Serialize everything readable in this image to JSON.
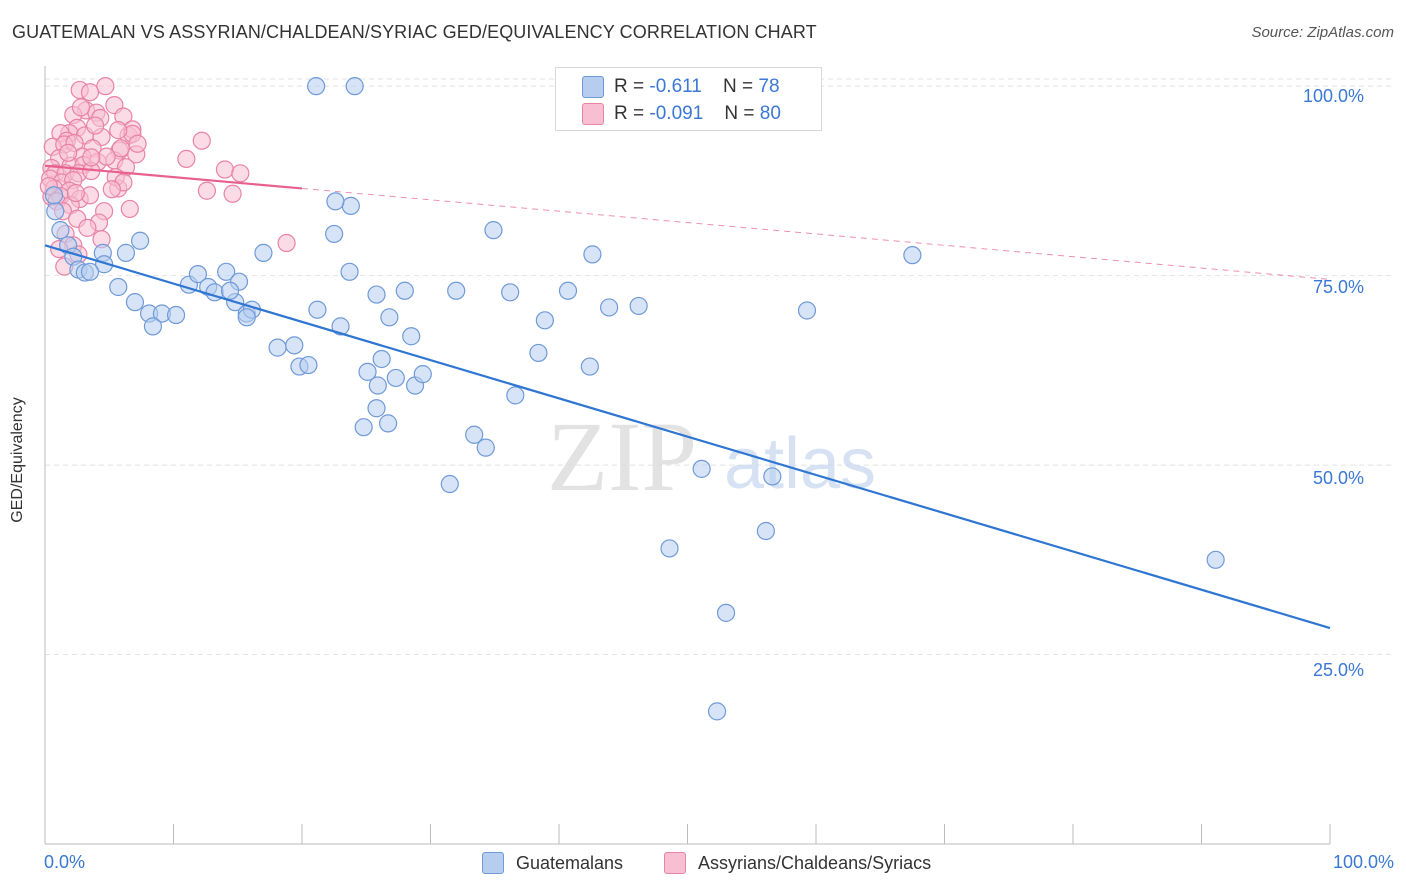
{
  "title": "GUATEMALAN VS ASSYRIAN/CHALDEAN/SYRIAC GED/EQUIVALENCY CORRELATION CHART",
  "source": "Source: ZipAtlas.com",
  "watermark": {
    "zip": "ZIP",
    "atlas": "atlas"
  },
  "legend": {
    "rows": [
      {
        "r_label": "R =",
        "r_value": "-0.611",
        "n_label": "N =",
        "n_value": "78"
      },
      {
        "r_label": "R =",
        "r_value": "-0.091",
        "n_label": "N =",
        "n_value": "80"
      }
    ]
  },
  "bottom_legend": {
    "guatemalans": "Guatemalans",
    "assyrians": "Assyrians/Chaldeans/Syriacs"
  },
  "colors": {
    "blue_fill": "#b6cdf0",
    "blue_stroke": "#6f9ad8",
    "blue_line": "#2f76d2",
    "pink_fill": "#f7bfd1",
    "pink_stroke": "#e983a6",
    "pink_line": "#e8608d",
    "grid": "#e2e2e2",
    "tick_text": "#3a78d4"
  },
  "chart_data": {
    "type": "scatter",
    "title": "GUATEMALAN VS ASSYRIAN/CHALDEAN/SYRIAC GED/EQUIVALENCY CORRELATION CHART",
    "xlabel": "",
    "ylabel": "GED/Equivalency",
    "xlim": [
      0,
      100
    ],
    "ylim": [
      0,
      102
    ],
    "x_tick_labels": [
      "0.0%",
      "100.0%"
    ],
    "y_ticks": [
      25,
      50,
      75,
      100
    ],
    "y_tick_labels": [
      "25.0%",
      "50.0%",
      "75.0%",
      "100.0%"
    ],
    "grid": true,
    "legend_position": "top-center",
    "series": [
      {
        "name": "Guatemalans",
        "R": -0.611,
        "N": 78,
        "trend": {
          "x": [
            0,
            100
          ],
          "y": [
            79.0,
            28.5
          ]
        },
        "points": [
          [
            21.1,
            100
          ],
          [
            24.1,
            100
          ],
          [
            1.2,
            81
          ],
          [
            1.8,
            79
          ],
          [
            2.2,
            77.5
          ],
          [
            2.6,
            75.8
          ],
          [
            3.1,
            75.4
          ],
          [
            4.5,
            78
          ],
          [
            6.3,
            78
          ],
          [
            7.4,
            79.6
          ],
          [
            4.6,
            76.5
          ],
          [
            3.5,
            75.5
          ],
          [
            5.7,
            73.5
          ],
          [
            7.0,
            71.5
          ],
          [
            8.1,
            70
          ],
          [
            9.1,
            70
          ],
          [
            8.4,
            68.3
          ],
          [
            10.2,
            69.8
          ],
          [
            11.2,
            73.8
          ],
          [
            11.9,
            75.2
          ],
          [
            12.7,
            73.5
          ],
          [
            13.2,
            72.8
          ],
          [
            14.1,
            75.5
          ],
          [
            14.8,
            71.5
          ],
          [
            15.1,
            74.2
          ],
          [
            14.4,
            73
          ],
          [
            15.7,
            70
          ],
          [
            16.1,
            70.5
          ],
          [
            15.7,
            69.5
          ],
          [
            17.0,
            78
          ],
          [
            18.1,
            65.5
          ],
          [
            19.4,
            65.8
          ],
          [
            19.8,
            63
          ],
          [
            20.5,
            63.2
          ],
          [
            21.2,
            70.5
          ],
          [
            23.0,
            68.3
          ],
          [
            22.5,
            80.5
          ],
          [
            23.8,
            84.2
          ],
          [
            25.1,
            62.3
          ],
          [
            28.5,
            67
          ],
          [
            26.8,
            69.5
          ],
          [
            25.8,
            72.5
          ],
          [
            23.7,
            75.5
          ],
          [
            25.8,
            57.5
          ],
          [
            24.8,
            55
          ],
          [
            25.9,
            60.5
          ],
          [
            26.7,
            55.5
          ],
          [
            26.2,
            64
          ],
          [
            28.0,
            73
          ],
          [
            27.3,
            61.5
          ],
          [
            28.8,
            60.5
          ],
          [
            29.4,
            62
          ],
          [
            31.5,
            47.5
          ],
          [
            32.0,
            73
          ],
          [
            33.4,
            54
          ],
          [
            34.3,
            52.3
          ],
          [
            34.9,
            81
          ],
          [
            36.2,
            72.8
          ],
          [
            36.6,
            59.2
          ],
          [
            38.9,
            69.1
          ],
          [
            38.4,
            64.8
          ],
          [
            40.7,
            73
          ],
          [
            42.4,
            63
          ],
          [
            42.6,
            77.8
          ],
          [
            43.9,
            70.8
          ],
          [
            46.2,
            71
          ],
          [
            48.6,
            39
          ],
          [
            51.1,
            49.5
          ],
          [
            52.3,
            17.5
          ],
          [
            53.0,
            30.5
          ],
          [
            56.1,
            41.3
          ],
          [
            56.6,
            48.5
          ],
          [
            59.3,
            70.4
          ],
          [
            67.5,
            77.7
          ],
          [
            91.1,
            37.5
          ],
          [
            22.6,
            84.8
          ],
          [
            0.8,
            83.5
          ],
          [
            0.7,
            85.6
          ]
        ]
      },
      {
        "name": "Assyrians/Chaldeans/Syriacs",
        "R": -0.091,
        "N": 80,
        "trend": {
          "x": [
            0,
            100
          ],
          "y": [
            89.5,
            74.5
          ],
          "solid_until": 20
        },
        "points": [
          [
            4.7,
            100
          ],
          [
            2.7,
            99.5
          ],
          [
            3.5,
            99.2
          ],
          [
            3.2,
            96.8
          ],
          [
            4.0,
            96.5
          ],
          [
            2.2,
            96.2
          ],
          [
            5.4,
            97.5
          ],
          [
            4.3,
            95.8
          ],
          [
            6.1,
            96
          ],
          [
            2.5,
            94.5
          ],
          [
            1.9,
            93.8
          ],
          [
            3.1,
            93.5
          ],
          [
            1.2,
            93.8
          ],
          [
            1.7,
            92.8
          ],
          [
            4.4,
            93.3
          ],
          [
            6.5,
            93.5
          ],
          [
            6.8,
            94.3
          ],
          [
            0.6,
            92
          ],
          [
            1.5,
            92.3
          ],
          [
            2.3,
            92.5
          ],
          [
            3.7,
            91.8
          ],
          [
            5.8,
            91.5
          ],
          [
            7.1,
            91
          ],
          [
            1.1,
            90.5
          ],
          [
            2.9,
            90.7
          ],
          [
            4.1,
            90
          ],
          [
            5.4,
            90.2
          ],
          [
            0.5,
            89.2
          ],
          [
            2.0,
            89.5
          ],
          [
            3.0,
            89.6
          ],
          [
            6.3,
            89.3
          ],
          [
            0.8,
            88.5
          ],
          [
            1.6,
            88.5
          ],
          [
            2.6,
            88.5
          ],
          [
            3.6,
            88.8
          ],
          [
            0.4,
            87.8
          ],
          [
            1.3,
            87.3
          ],
          [
            2.2,
            87.6
          ],
          [
            0.7,
            86.5
          ],
          [
            1.9,
            86.2
          ],
          [
            5.7,
            86.5
          ],
          [
            0.5,
            85.4
          ],
          [
            1.2,
            85.5
          ],
          [
            2.7,
            85.1
          ],
          [
            3.5,
            85.6
          ],
          [
            0.9,
            84.8
          ],
          [
            2.0,
            84.3
          ],
          [
            1.4,
            83.5
          ],
          [
            4.6,
            83.5
          ],
          [
            2.5,
            82.5
          ],
          [
            4.2,
            82
          ],
          [
            3.3,
            81.3
          ],
          [
            1.6,
            80.5
          ],
          [
            4.4,
            79.8
          ],
          [
            2.2,
            79
          ],
          [
            1.1,
            78.5
          ],
          [
            2.6,
            77.8
          ],
          [
            1.5,
            76.2
          ],
          [
            5.5,
            88
          ],
          [
            5.9,
            91.8
          ],
          [
            6.8,
            93.7
          ],
          [
            7.2,
            92.4
          ],
          [
            11.0,
            90.4
          ],
          [
            12.2,
            92.8
          ],
          [
            12.6,
            86.2
          ],
          [
            14.0,
            89
          ],
          [
            14.6,
            85.8
          ],
          [
            15.2,
            88.5
          ],
          [
            18.8,
            79.3
          ],
          [
            5.7,
            94.2
          ],
          [
            3.9,
            94.8
          ],
          [
            6.1,
            87.3
          ],
          [
            4.8,
            90.7
          ],
          [
            2.8,
            97.2
          ],
          [
            3.6,
            90.6
          ],
          [
            5.2,
            86.4
          ],
          [
            1.8,
            91.2
          ],
          [
            0.3,
            86.8
          ],
          [
            6.6,
            83.8
          ],
          [
            2.4,
            85.9
          ]
        ]
      }
    ]
  }
}
